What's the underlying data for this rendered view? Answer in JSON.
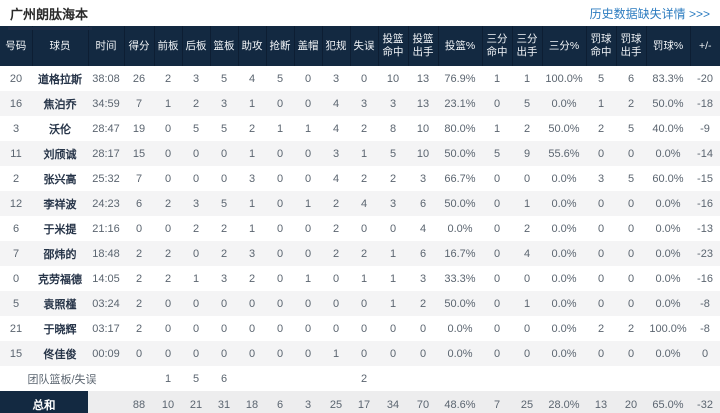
{
  "page": {
    "title": "广州朗肽海本",
    "history_link": "历史数据缺失详情 >>>"
  },
  "table": {
    "columns": [
      "号码",
      "球员",
      "时间",
      "得分",
      "前板",
      "后板",
      "篮板",
      "助攻",
      "抢断",
      "盖帽",
      "犯规",
      "失误",
      "投篮\n命中",
      "投篮\n出手",
      "投篮%",
      "三分\n命中",
      "三分\n出手",
      "三分%",
      "罚球\n命中",
      "罚球\n出手",
      "罚球%",
      "+/-"
    ],
    "rows": [
      {
        "type": "player",
        "cells": [
          "20",
          "道格拉斯",
          "38:08",
          "26",
          "2",
          "3",
          "5",
          "4",
          "5",
          "0",
          "3",
          "0",
          "10",
          "13",
          "76.9%",
          "1",
          "1",
          "100.0%",
          "5",
          "6",
          "83.3%",
          "-20"
        ]
      },
      {
        "type": "player",
        "cells": [
          "16",
          "焦泊乔",
          "34:59",
          "7",
          "1",
          "2",
          "3",
          "1",
          "0",
          "0",
          "4",
          "3",
          "3",
          "13",
          "23.1%",
          "0",
          "5",
          "0.0%",
          "1",
          "2",
          "50.0%",
          "-18"
        ]
      },
      {
        "type": "player",
        "cells": [
          "3",
          "沃伦",
          "28:47",
          "19",
          "0",
          "5",
          "5",
          "2",
          "1",
          "1",
          "4",
          "2",
          "8",
          "10",
          "80.0%",
          "1",
          "2",
          "50.0%",
          "2",
          "5",
          "40.0%",
          "-9"
        ]
      },
      {
        "type": "player",
        "cells": [
          "11",
          "刘颀诚",
          "28:17",
          "15",
          "0",
          "0",
          "0",
          "1",
          "0",
          "0",
          "3",
          "1",
          "5",
          "10",
          "50.0%",
          "5",
          "9",
          "55.6%",
          "0",
          "0",
          "0.0%",
          "-14"
        ]
      },
      {
        "type": "player",
        "cells": [
          "2",
          "张兴高",
          "25:32",
          "7",
          "0",
          "0",
          "0",
          "3",
          "0",
          "0",
          "4",
          "2",
          "2",
          "3",
          "66.7%",
          "0",
          "0",
          "0.0%",
          "3",
          "5",
          "60.0%",
          "-15"
        ]
      },
      {
        "type": "player",
        "cells": [
          "12",
          "李祥波",
          "24:23",
          "6",
          "2",
          "3",
          "5",
          "1",
          "0",
          "1",
          "2",
          "4",
          "3",
          "6",
          "50.0%",
          "0",
          "1",
          "0.0%",
          "0",
          "0",
          "0.0%",
          "-16"
        ]
      },
      {
        "type": "player",
        "cells": [
          "6",
          "于米提",
          "21:16",
          "0",
          "0",
          "2",
          "2",
          "1",
          "0",
          "0",
          "2",
          "0",
          "0",
          "4",
          "0.0%",
          "0",
          "2",
          "0.0%",
          "0",
          "0",
          "0.0%",
          "-13"
        ]
      },
      {
        "type": "player",
        "cells": [
          "7",
          "邵炜的",
          "18:48",
          "2",
          "2",
          "0",
          "2",
          "3",
          "0",
          "0",
          "2",
          "2",
          "1",
          "6",
          "16.7%",
          "0",
          "4",
          "0.0%",
          "0",
          "0",
          "0.0%",
          "-23"
        ]
      },
      {
        "type": "player",
        "cells": [
          "0",
          "克劳福德",
          "14:05",
          "2",
          "2",
          "1",
          "3",
          "2",
          "0",
          "1",
          "0",
          "1",
          "1",
          "3",
          "33.3%",
          "0",
          "0",
          "0.0%",
          "0",
          "0",
          "0.0%",
          "-16"
        ]
      },
      {
        "type": "player",
        "cells": [
          "5",
          "袁照槿",
          "03:24",
          "2",
          "0",
          "0",
          "0",
          "0",
          "0",
          "0",
          "0",
          "0",
          "1",
          "2",
          "50.0%",
          "0",
          "1",
          "0.0%",
          "0",
          "0",
          "0.0%",
          "-8"
        ]
      },
      {
        "type": "player",
        "cells": [
          "21",
          "于晓辉",
          "03:17",
          "2",
          "0",
          "0",
          "0",
          "0",
          "0",
          "0",
          "0",
          "0",
          "0",
          "0",
          "0.0%",
          "0",
          "0",
          "0.0%",
          "2",
          "2",
          "100.0%",
          "-8"
        ]
      },
      {
        "type": "player",
        "cells": [
          "15",
          "佟佳俊",
          "00:09",
          "0",
          "0",
          "0",
          "0",
          "0",
          "0",
          "0",
          "1",
          "0",
          "0",
          "0",
          "0.0%",
          "0",
          "0",
          "0.0%",
          "0",
          "0",
          "0.0%",
          "0"
        ]
      },
      {
        "type": "team",
        "label": "团队篮板/失误",
        "cells": [
          "",
          "1",
          "5",
          "6",
          "",
          "",
          "",
          "",
          "2",
          "",
          "",
          "",
          "",
          "",
          "",
          "",
          "",
          "",
          ""
        ]
      },
      {
        "type": "total",
        "label": "总和",
        "cells": [
          "",
          "88",
          "10",
          "21",
          "31",
          "18",
          "6",
          "3",
          "25",
          "17",
          "34",
          "70",
          "48.6%",
          "7",
          "25",
          "28.0%",
          "13",
          "20",
          "65.0%",
          "-32"
        ]
      }
    ]
  }
}
